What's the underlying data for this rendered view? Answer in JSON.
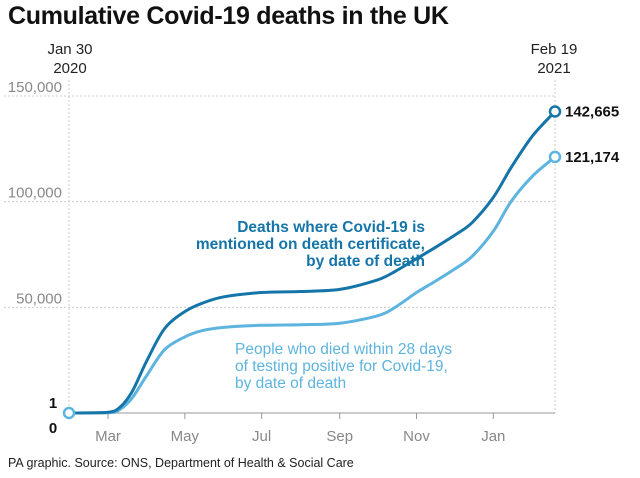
{
  "title": "Cumulative Covid-19 deaths in the UK",
  "source": "PA graphic. Source: ONS, Department of Health & Social Care",
  "start_date": {
    "line1": "Jan 30",
    "line2": "2020"
  },
  "end_date": {
    "line1": "Feb 19",
    "line2": "2021"
  },
  "colors": {
    "certificate": "#1575a8",
    "tested": "#5db4de",
    "axis": "#999999",
    "grid": "#cccccc",
    "tick_text": "#888888"
  },
  "chart_data": {
    "type": "line",
    "title": "Cumulative Covid-19 deaths in the UK",
    "xlabel": "",
    "ylabel": "",
    "xlim": [
      "2020-01-30",
      "2021-02-19"
    ],
    "ylim": [
      0,
      150000
    ],
    "x_ticks": [
      {
        "date": "2020-03-01",
        "label": "Mar"
      },
      {
        "date": "2020-05-01",
        "label": "May"
      },
      {
        "date": "2020-07-01",
        "label": "Jul"
      },
      {
        "date": "2020-09-01",
        "label": "Sep"
      },
      {
        "date": "2020-11-01",
        "label": "Nov"
      },
      {
        "date": "2021-01-01",
        "label": "Jan"
      }
    ],
    "y_ticks": [
      {
        "value": 50000,
        "label": "50,000"
      },
      {
        "value": 100000,
        "label": "100,000"
      },
      {
        "value": 150000,
        "label": "150,000"
      }
    ],
    "start_labels": {
      "top": "1",
      "bottom": "0"
    },
    "grid": true,
    "series": [
      {
        "name": "Deaths where Covid-19 is mentioned on death certificate, by date of death",
        "label_lines": [
          "Deaths where Covid-19 is",
          "mentioned on death certificate,",
          "by date of death"
        ],
        "end_label": "142,665",
        "x": [
          "2020-01-30",
          "2020-02-29",
          "2020-03-10",
          "2020-03-20",
          "2020-04-01",
          "2020-04-15",
          "2020-05-01",
          "2020-05-15",
          "2020-06-01",
          "2020-07-01",
          "2020-08-01",
          "2020-09-01",
          "2020-10-01",
          "2020-10-15",
          "2020-11-01",
          "2020-11-15",
          "2020-12-01",
          "2020-12-15",
          "2021-01-01",
          "2021-01-15",
          "2021-02-01",
          "2021-02-19"
        ],
        "values": [
          0,
          300,
          2500,
          10000,
          25000,
          40000,
          48000,
          52000,
          55000,
          57000,
          57500,
          58500,
          63000,
          67000,
          73000,
          78000,
          84000,
          90000,
          102000,
          116000,
          131000,
          142665
        ]
      },
      {
        "name": "People who died within 28 days of testing positive for Covid-19, by date of death",
        "label_lines": [
          "People who died within 28 days",
          "of testing positive for Covid-19,",
          "by date of death"
        ],
        "end_label": "121,174",
        "x": [
          "2020-01-30",
          "2020-03-01",
          "2020-03-10",
          "2020-03-20",
          "2020-04-01",
          "2020-04-15",
          "2020-05-01",
          "2020-05-15",
          "2020-06-01",
          "2020-07-01",
          "2020-08-01",
          "2020-09-01",
          "2020-10-01",
          "2020-10-15",
          "2020-11-01",
          "2020-11-15",
          "2020-12-01",
          "2020-12-15",
          "2021-01-01",
          "2021-01-15",
          "2021-02-01",
          "2021-02-19"
        ],
        "values": [
          0,
          100,
          1500,
          7000,
          18000,
          30000,
          36000,
          39000,
          40500,
          41500,
          41800,
          42500,
          46000,
          50000,
          57000,
          62000,
          68000,
          74000,
          86000,
          100000,
          112000,
          121174
        ]
      }
    ]
  }
}
